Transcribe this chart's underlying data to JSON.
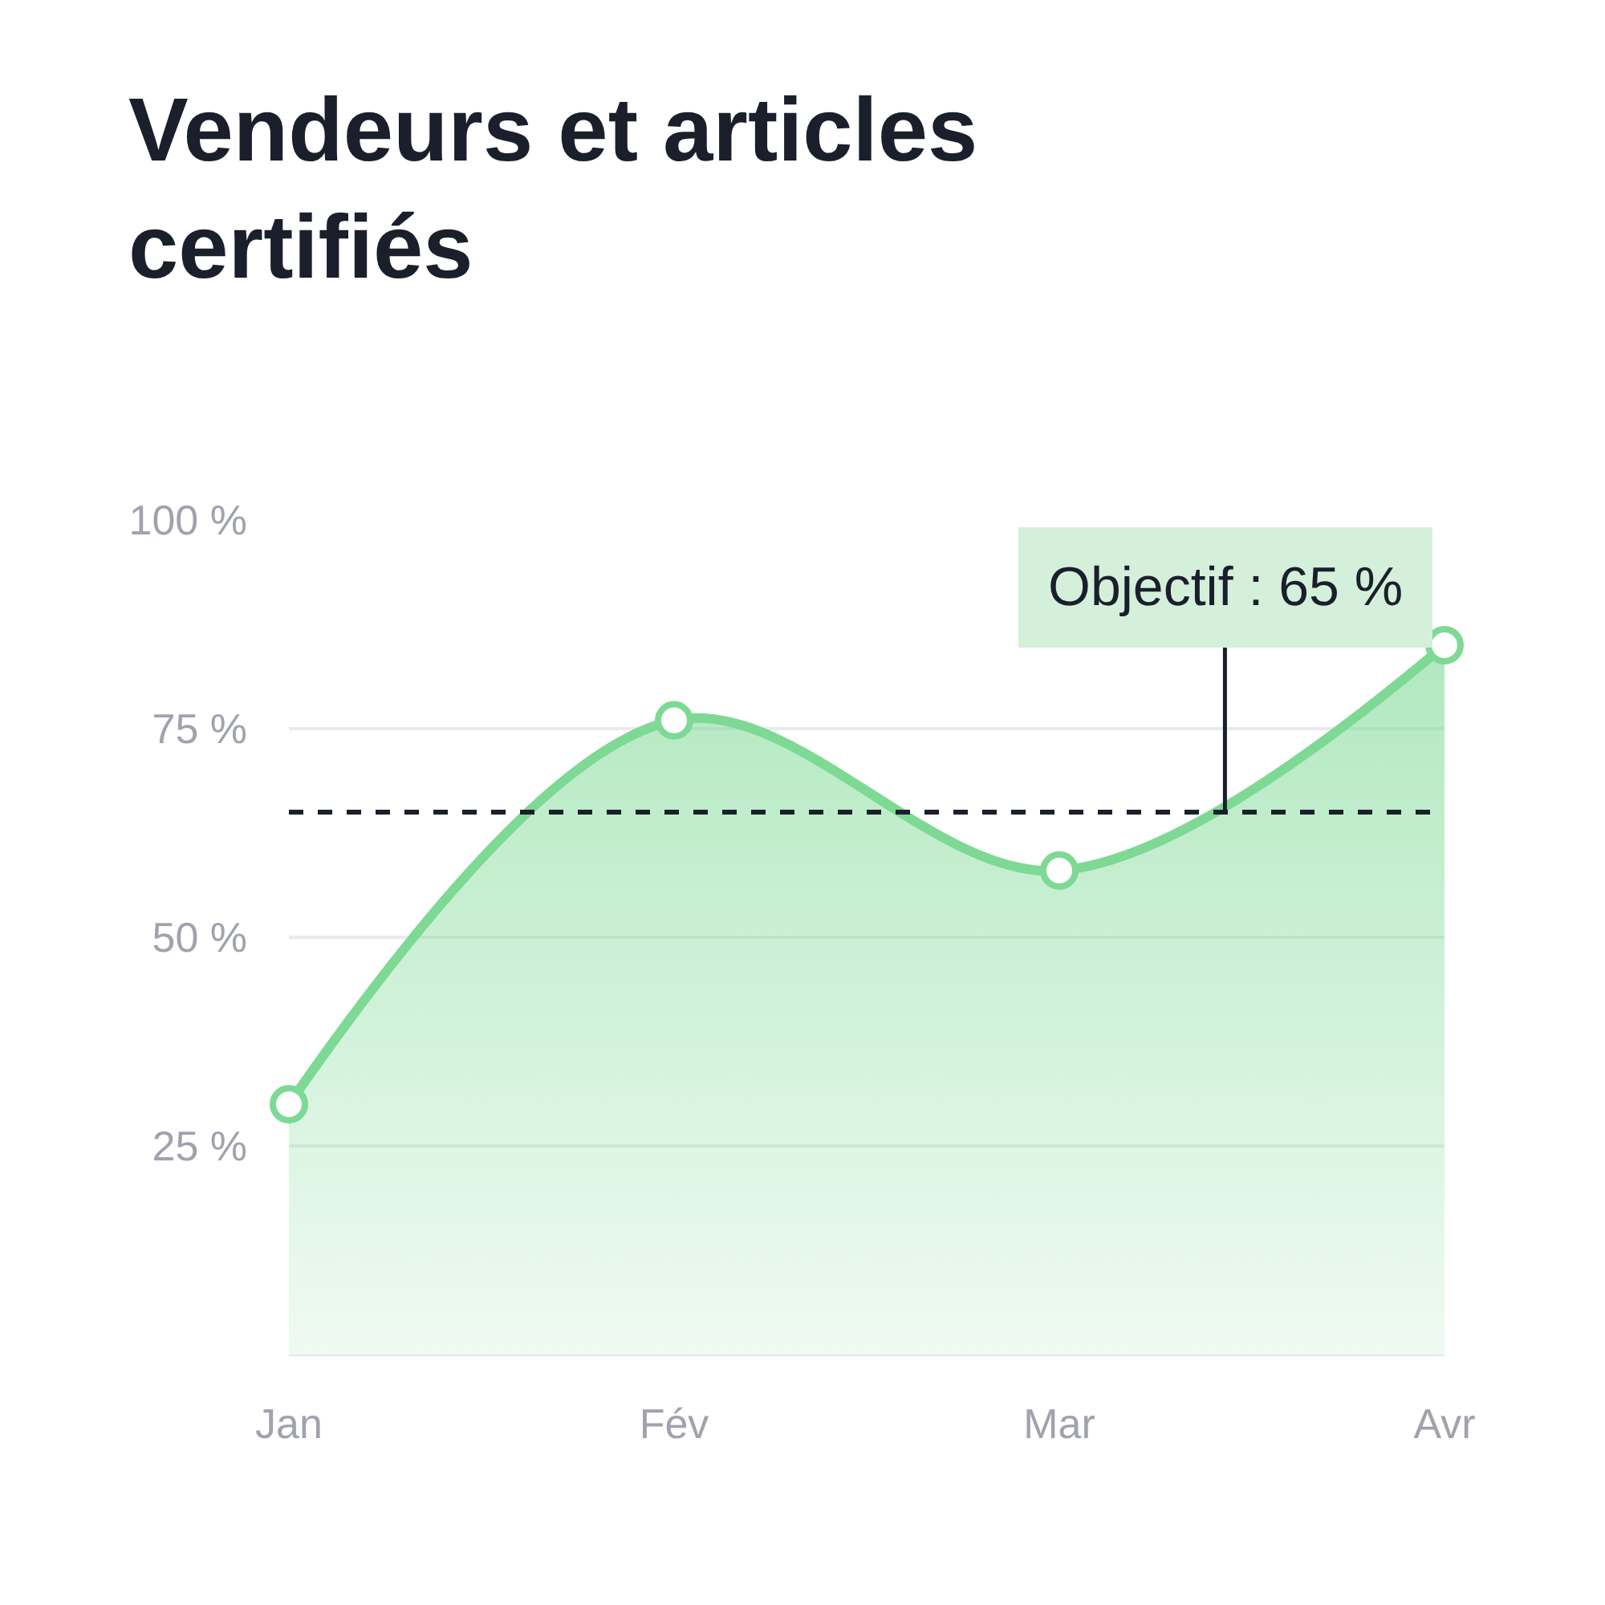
{
  "chart_data": {
    "type": "area",
    "title": "Vendeurs et articles certifiés",
    "categories": [
      "Jan",
      "Fév",
      "Mar",
      "Avr"
    ],
    "series": [
      {
        "color": "#7dd994",
        "values": [
          30,
          76,
          58,
          85
        ]
      }
    ],
    "ylim": [
      0,
      100
    ],
    "yticks": [
      {
        "value": 25,
        "label": "25 %"
      },
      {
        "value": 50,
        "label": "50 %"
      },
      {
        "value": 75,
        "label": "75 %"
      },
      {
        "value": 100,
        "label": "100 %"
      }
    ],
    "grid": "y",
    "marker": "circle",
    "ref_lines": [
      {
        "axis": "y",
        "value": 65,
        "label": "Objectif : 65 %",
        "color": "#1a1f2b",
        "line_style": "dashed"
      }
    ]
  }
}
